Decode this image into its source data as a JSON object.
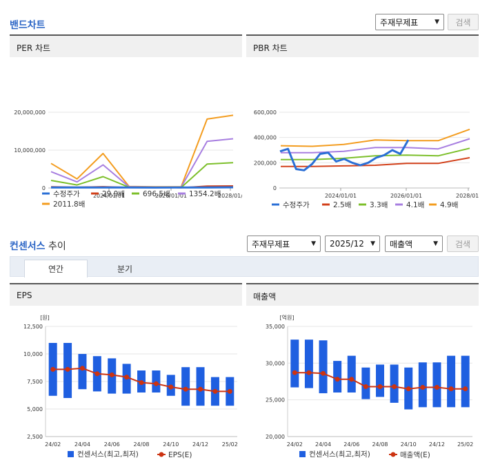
{
  "band": {
    "title": "밴드차트",
    "select_label": "주재무제표",
    "search_label": "검색"
  },
  "per": {
    "title": "PER 차트",
    "y_ticks": [
      "20,000,000",
      "10,000,000",
      "0"
    ],
    "x_ticks": [
      "2024/01/01",
      "2026/01/01",
      "2028/01/"
    ],
    "legend": [
      "수정주가",
      "29.9배",
      "696.5배",
      "1354.2배",
      "2011.8배"
    ]
  },
  "pbr": {
    "title": "PBR 차트",
    "y_ticks": [
      "600,000",
      "400,000",
      "200,000",
      "0"
    ],
    "x_ticks": [
      "2024/01/01",
      "2026/01/01",
      "2028/01/"
    ],
    "legend": [
      "수정주가",
      "2.5배",
      "3.3배",
      "4.1배",
      "4.9배"
    ]
  },
  "consensus": {
    "title_main": "컨센서스",
    "title_sub": " 추이",
    "select_statement": "주재무제표",
    "select_period": "2025/12",
    "select_metric": "매출액",
    "search_label": "검색",
    "tabs": [
      "연간",
      "분기"
    ]
  },
  "eps": {
    "title": "EPS",
    "unit": "[원]",
    "y_ticks": [
      "12,500",
      "10,000",
      "7,500",
      "5,000",
      "2,500"
    ],
    "x_ticks": [
      "24/02",
      "24/04",
      "24/06",
      "24/08",
      "24/10",
      "24/12",
      "25/02"
    ],
    "legend": [
      "컨센서스(최고,최저)",
      "EPS(E)"
    ]
  },
  "sales": {
    "title": "매출액",
    "unit": "[억원]",
    "y_ticks": [
      "35,000",
      "30,000",
      "25,000",
      "20,000"
    ],
    "x_ticks": [
      "24/02",
      "24/04",
      "24/06",
      "24/08",
      "24/10",
      "24/12",
      "25/02"
    ],
    "legend": [
      "컨센서스(최고,최저)",
      "매출액(E)"
    ]
  },
  "chart_data": [
    {
      "type": "line",
      "title": "PER 차트",
      "ylim": [
        0,
        20000000
      ],
      "series": [
        {
          "name": "수정주가",
          "values": [
            150000,
            130000,
            140000,
            120000,
            110000,
            140000,
            150000,
            180000
          ]
        },
        {
          "name": "29.9배",
          "values": [
            300000,
            200000,
            350000,
            150000,
            100000,
            80000,
            500000,
            550000
          ]
        },
        {
          "name": "696.5배",
          "values": [
            2000000,
            800000,
            3000000,
            200000,
            100000,
            100000,
            6300000,
            6700000
          ]
        },
        {
          "name": "1354.2배",
          "values": [
            4300000,
            1600000,
            6100000,
            300000,
            200000,
            200000,
            12300000,
            13000000
          ]
        },
        {
          "name": "2011.8배",
          "values": [
            6500000,
            2400000,
            9100000,
            400000,
            300000,
            300000,
            18200000,
            19200000
          ]
        }
      ]
    },
    {
      "type": "line",
      "title": "PBR 차트",
      "ylim": [
        0,
        600000
      ],
      "series": [
        {
          "name": "수정주가",
          "values": [
            290000,
            310000,
            150000,
            140000,
            190000,
            270000,
            280000,
            210000,
            230000,
            200000,
            180000,
            200000,
            240000,
            260000,
            300000,
            270000,
            380000
          ]
        },
        {
          "name": "2.5배",
          "values": [
            170000,
            170000,
            175000,
            180000,
            195000,
            195000,
            240000
          ]
        },
        {
          "name": "3.3배",
          "values": [
            225000,
            225000,
            235000,
            255000,
            260000,
            255000,
            315000
          ]
        },
        {
          "name": "4.1배",
          "values": [
            280000,
            280000,
            290000,
            320000,
            320000,
            310000,
            390000
          ]
        },
        {
          "name": "4.9배",
          "values": [
            335000,
            330000,
            345000,
            380000,
            375000,
            375000,
            465000
          ]
        }
      ]
    },
    {
      "type": "bar",
      "title": "EPS",
      "ylim": [
        2500,
        12500
      ],
      "categories": [
        "24/02",
        "24/03",
        "24/04",
        "24/05",
        "24/06",
        "24/07",
        "24/08",
        "24/09",
        "24/10",
        "24/11",
        "24/12",
        "25/01",
        "25/02"
      ],
      "series": [
        {
          "name": "컨센서스(최고,최저)",
          "high": [
            11000,
            11000,
            10000,
            9800,
            9600,
            9100,
            8500,
            8500,
            8100,
            8800,
            8800,
            7900,
            7900
          ],
          "low": [
            6200,
            6000,
            6800,
            6600,
            6400,
            6400,
            6500,
            6500,
            6200,
            5300,
            5300,
            5300,
            5300
          ]
        },
        {
          "name": "EPS(E)",
          "values": [
            8600,
            8600,
            8700,
            8200,
            8100,
            7900,
            7400,
            7300,
            7000,
            6800,
            6800,
            6600,
            6600
          ]
        }
      ]
    },
    {
      "type": "bar",
      "title": "매출액",
      "ylim": [
        20000,
        35000
      ],
      "categories": [
        "24/02",
        "24/03",
        "24/04",
        "24/05",
        "24/06",
        "24/07",
        "24/08",
        "24/09",
        "24/10",
        "24/11",
        "24/12",
        "25/01",
        "25/02"
      ],
      "series": [
        {
          "name": "컨센서스(최고,최저)",
          "high": [
            33200,
            33200,
            33100,
            30300,
            31000,
            29400,
            29800,
            29800,
            29400,
            30100,
            30100,
            31000,
            31000
          ],
          "low": [
            26700,
            26600,
            25900,
            26000,
            26000,
            25100,
            25400,
            24600,
            23700,
            24000,
            24000,
            24000,
            24000
          ]
        },
        {
          "name": "매출액(E)",
          "values": [
            28700,
            28700,
            28600,
            27800,
            27800,
            26800,
            26800,
            26800,
            26500,
            26700,
            26700,
            26500,
            26500
          ]
        }
      ]
    }
  ]
}
